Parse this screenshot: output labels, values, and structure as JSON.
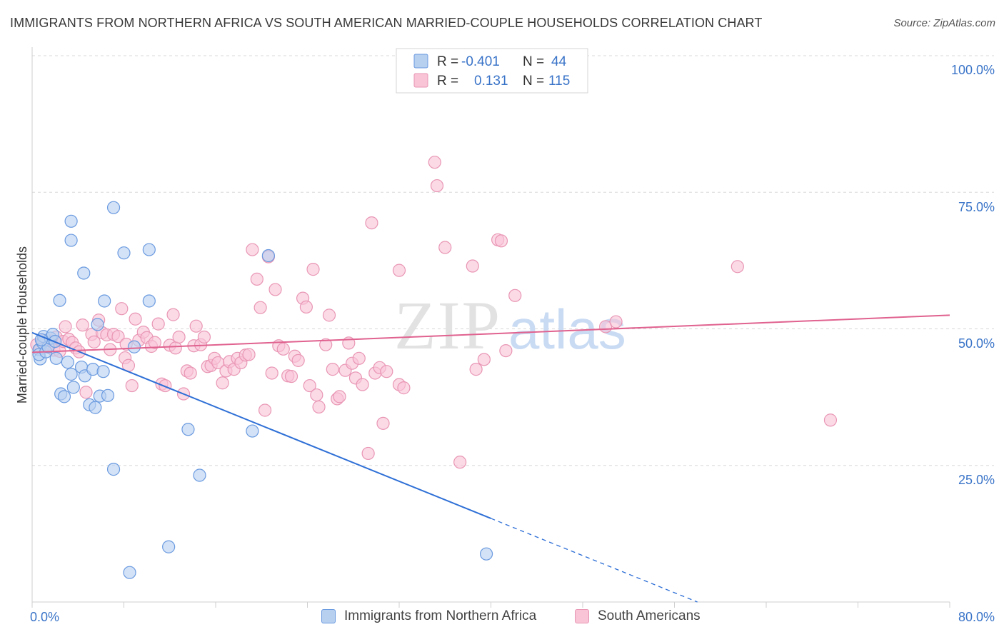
{
  "header": {
    "title": "IMMIGRANTS FROM NORTHERN AFRICA VS SOUTH AMERICAN MARRIED-COUPLE HOUSEHOLDS CORRELATION CHART",
    "source": "Source: ZipAtlas.com"
  },
  "watermark": {
    "zip": "ZIP",
    "atlas": "atlas"
  },
  "colors": {
    "blue_fill": "#b8d0f0",
    "blue_stroke": "#6a9ae0",
    "blue_line": "#2e6fd6",
    "pink_fill": "#f8c4d6",
    "pink_stroke": "#e996b4",
    "pink_line": "#e0628f",
    "axis_label": "#3a74c8",
    "grid": "#d8d8d8"
  },
  "stats_legend": {
    "rows": [
      {
        "r_label": "R =",
        "r_value": "-0.401",
        "n_label": "N =",
        "n_value": "44"
      },
      {
        "r_label": "R =",
        "r_value": "0.131",
        "n_label": "N =",
        "n_value": "115"
      }
    ]
  },
  "bottom_legend": {
    "items": [
      {
        "label": "Immigrants from Northern Africa"
      },
      {
        "label": "South Americans"
      }
    ]
  },
  "chart_data": {
    "type": "scatter",
    "title": "IMMIGRANTS FROM NORTHERN AFRICA VS SOUTH AMERICAN MARRIED-COUPLE HOUSEHOLDS CORRELATION CHART",
    "xlabel": "",
    "ylabel": "Married-couple Households",
    "xlim": [
      0,
      80
    ],
    "ylim": [
      0,
      100
    ],
    "x_ticks_labels": [
      "0.0%",
      "80.0%"
    ],
    "y_ticks": [
      25,
      50,
      75,
      100
    ],
    "y_tick_labels": [
      "25.0%",
      "50.0%",
      "75.0%",
      "100.0%"
    ],
    "grid": true,
    "series": [
      {
        "name": "Immigrants from Northern Africa",
        "color": "#b8d0f0",
        "r": -0.401,
        "n": 44,
        "trend": {
          "x0": 0,
          "y0": 49.3,
          "x1": 40,
          "y1": 15.3,
          "dash_to_x": 58,
          "dash_to_y": 0
        },
        "points": [
          [
            0.6,
            46.2
          ],
          [
            0.7,
            44.5
          ],
          [
            0.6,
            45.3
          ],
          [
            0.9,
            47.5
          ],
          [
            1.0,
            48.6
          ],
          [
            1.2,
            45.8
          ],
          [
            1.4,
            46.7
          ],
          [
            1.6,
            48.3
          ],
          [
            1.8,
            49.0
          ],
          [
            2.0,
            47.7
          ],
          [
            2.1,
            44.6
          ],
          [
            2.5,
            38.1
          ],
          [
            2.8,
            37.6
          ],
          [
            3.1,
            43.9
          ],
          [
            3.4,
            41.7
          ],
          [
            3.6,
            39.3
          ],
          [
            4.3,
            43.0
          ],
          [
            4.6,
            41.4
          ],
          [
            5.0,
            36.1
          ],
          [
            5.3,
            42.6
          ],
          [
            5.5,
            35.6
          ],
          [
            5.7,
            50.8
          ],
          [
            5.9,
            37.7
          ],
          [
            6.2,
            42.2
          ],
          [
            6.6,
            37.8
          ],
          [
            2.4,
            55.2
          ],
          [
            3.4,
            69.7
          ],
          [
            3.4,
            66.2
          ],
          [
            4.5,
            60.2
          ],
          [
            6.3,
            55.1
          ],
          [
            7.1,
            72.2
          ],
          [
            8.0,
            63.9
          ],
          [
            10.2,
            64.5
          ],
          [
            10.2,
            55.1
          ],
          [
            8.9,
            46.7
          ],
          [
            13.6,
            31.6
          ],
          [
            7.1,
            24.3
          ],
          [
            14.6,
            23.2
          ],
          [
            11.9,
            10.1
          ],
          [
            8.5,
            5.4
          ],
          [
            19.2,
            31.3
          ],
          [
            20.6,
            63.4
          ],
          [
            39.6,
            8.8
          ],
          [
            0.8,
            48.0
          ]
        ]
      },
      {
        "name": "South Americans",
        "color": "#f8c4d6",
        "r": 0.131,
        "n": 115,
        "trend": {
          "x0": 0,
          "y0": 45.7,
          "x1": 80,
          "y1": 52.5
        },
        "points": [
          [
            0.4,
            47.1
          ],
          [
            0.7,
            46.3
          ],
          [
            1.0,
            47.9
          ],
          [
            1.3,
            46.8
          ],
          [
            1.6,
            47.3
          ],
          [
            1.9,
            46.1
          ],
          [
            2.1,
            48.5
          ],
          [
            2.4,
            45.9
          ],
          [
            2.7,
            47.7
          ],
          [
            2.9,
            50.4
          ],
          [
            3.2,
            48.1
          ],
          [
            3.5,
            47.5
          ],
          [
            3.8,
            46.5
          ],
          [
            4.1,
            45.8
          ],
          [
            4.4,
            50.7
          ],
          [
            4.7,
            38.4
          ],
          [
            5.2,
            49.0
          ],
          [
            5.4,
            47.6
          ],
          [
            5.8,
            51.6
          ],
          [
            6.1,
            49.3
          ],
          [
            6.5,
            48.9
          ],
          [
            6.8,
            46.2
          ],
          [
            7.1,
            49.0
          ],
          [
            7.5,
            48.6
          ],
          [
            7.8,
            53.7
          ],
          [
            8.1,
            44.7
          ],
          [
            8.4,
            43.3
          ],
          [
            8.7,
            39.6
          ],
          [
            9.0,
            51.8
          ],
          [
            9.3,
            47.9
          ],
          [
            9.7,
            49.4
          ],
          [
            10.0,
            48.4
          ],
          [
            10.4,
            46.8
          ],
          [
            10.7,
            47.5
          ],
          [
            11.0,
            50.9
          ],
          [
            11.3,
            39.9
          ],
          [
            11.6,
            39.6
          ],
          [
            12.0,
            47.0
          ],
          [
            12.3,
            52.6
          ],
          [
            12.5,
            46.5
          ],
          [
            12.8,
            48.5
          ],
          [
            13.2,
            38.1
          ],
          [
            13.5,
            42.3
          ],
          [
            13.8,
            41.9
          ],
          [
            14.1,
            46.9
          ],
          [
            14.3,
            50.5
          ],
          [
            14.7,
            47.1
          ],
          [
            15.0,
            48.5
          ],
          [
            15.3,
            43.1
          ],
          [
            15.6,
            43.3
          ],
          [
            15.9,
            44.6
          ],
          [
            16.2,
            43.8
          ],
          [
            16.6,
            40.1
          ],
          [
            16.9,
            42.3
          ],
          [
            17.2,
            44.0
          ],
          [
            17.6,
            42.6
          ],
          [
            17.9,
            44.6
          ],
          [
            18.2,
            43.8
          ],
          [
            18.6,
            45.2
          ],
          [
            18.9,
            45.3
          ],
          [
            19.2,
            64.5
          ],
          [
            19.6,
            59.1
          ],
          [
            19.9,
            53.9
          ],
          [
            20.3,
            35.1
          ],
          [
            20.6,
            63.2
          ],
          [
            20.9,
            41.9
          ],
          [
            21.2,
            57.2
          ],
          [
            21.5,
            46.9
          ],
          [
            21.9,
            46.3
          ],
          [
            22.3,
            41.4
          ],
          [
            22.6,
            41.3
          ],
          [
            22.9,
            45.0
          ],
          [
            23.2,
            44.2
          ],
          [
            23.6,
            55.6
          ],
          [
            23.9,
            54.0
          ],
          [
            24.2,
            39.6
          ],
          [
            24.5,
            60.9
          ],
          [
            24.8,
            37.9
          ],
          [
            25.0,
            35.7
          ],
          [
            25.6,
            47.1
          ],
          [
            25.9,
            52.5
          ],
          [
            26.2,
            42.6
          ],
          [
            26.6,
            37.2
          ],
          [
            26.8,
            37.6
          ],
          [
            27.3,
            42.4
          ],
          [
            27.6,
            47.4
          ],
          [
            27.9,
            43.7
          ],
          [
            28.2,
            41.0
          ],
          [
            28.5,
            44.6
          ],
          [
            28.8,
            39.8
          ],
          [
            29.3,
            27.2
          ],
          [
            29.6,
            69.4
          ],
          [
            29.9,
            41.9
          ],
          [
            30.3,
            42.9
          ],
          [
            30.6,
            32.7
          ],
          [
            30.9,
            42.2
          ],
          [
            32.0,
            60.7
          ],
          [
            32.0,
            39.8
          ],
          [
            32.4,
            39.2
          ],
          [
            35.1,
            80.5
          ],
          [
            35.3,
            76.2
          ],
          [
            36.0,
            64.9
          ],
          [
            37.3,
            25.6
          ],
          [
            38.4,
            61.5
          ],
          [
            38.7,
            42.6
          ],
          [
            39.4,
            44.4
          ],
          [
            40.6,
            66.3
          ],
          [
            40.9,
            66.1
          ],
          [
            41.3,
            46.0
          ],
          [
            42.1,
            56.1
          ],
          [
            50.0,
            50.4
          ],
          [
            50.9,
            51.3
          ],
          [
            61.5,
            61.4
          ],
          [
            69.6,
            33.3
          ],
          [
            8.2,
            47.2
          ]
        ]
      }
    ]
  }
}
